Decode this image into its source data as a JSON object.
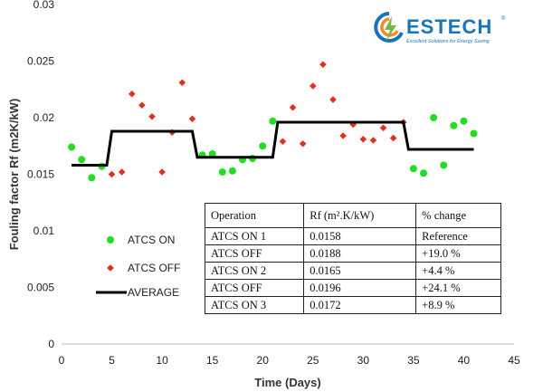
{
  "chart_data": {
    "type": "scatter",
    "xlabel": "Time (Days)",
    "ylabel": "Fouling factor Rf (m2K/kW)",
    "xlim": [
      0,
      45
    ],
    "ylim": [
      0,
      0.03
    ],
    "x_ticks": [
      "0",
      "5",
      "10",
      "15",
      "20",
      "25",
      "30",
      "35",
      "40",
      "45"
    ],
    "y_ticks": [
      "0",
      "0.005",
      "0.01",
      "0.015",
      "0.02",
      "0.025",
      "0.03"
    ],
    "grid": false,
    "legend_position": "left",
    "series": [
      {
        "name": "ATCS ON",
        "marker": "circle",
        "color": "#22dd22",
        "points": [
          [
            1,
            0.0174
          ],
          [
            2,
            0.0163
          ],
          [
            3,
            0.0147
          ],
          [
            4,
            0.0157
          ],
          [
            14,
            0.0167
          ],
          [
            15,
            0.0168
          ],
          [
            16,
            0.0152
          ],
          [
            17,
            0.0153
          ],
          [
            18,
            0.0163
          ],
          [
            19,
            0.0164
          ],
          [
            20,
            0.0175
          ],
          [
            21,
            0.0197
          ],
          [
            35,
            0.0155
          ],
          [
            36,
            0.0151
          ],
          [
            37,
            0.02
          ],
          [
            38,
            0.0158
          ],
          [
            39,
            0.0193
          ],
          [
            40,
            0.0197
          ],
          [
            41,
            0.0186
          ]
        ]
      },
      {
        "name": "ATCS OFF",
        "marker": "diamond",
        "color": "#e0301e",
        "points": [
          [
            5,
            0.015
          ],
          [
            6,
            0.0152
          ],
          [
            7,
            0.0221
          ],
          [
            8,
            0.0211
          ],
          [
            9,
            0.0201
          ],
          [
            10,
            0.0152
          ],
          [
            11,
            0.0187
          ],
          [
            12,
            0.0231
          ],
          [
            13,
            0.0199
          ],
          [
            22,
            0.0179
          ],
          [
            23,
            0.0209
          ],
          [
            24,
            0.0177
          ],
          [
            25,
            0.0228
          ],
          [
            26,
            0.0247
          ],
          [
            27,
            0.0216
          ],
          [
            28,
            0.0184
          ],
          [
            29,
            0.0194
          ],
          [
            30,
            0.0181
          ],
          [
            31,
            0.018
          ],
          [
            32,
            0.0191
          ],
          [
            33,
            0.0182
          ],
          [
            34,
            0.0196
          ]
        ]
      },
      {
        "name": "AVERAGE",
        "marker": "line",
        "color": "#000000",
        "points": [
          [
            1,
            0.0158
          ],
          [
            4.5,
            0.0158
          ],
          [
            5,
            0.0188
          ],
          [
            13,
            0.0188
          ],
          [
            13.5,
            0.0165
          ],
          [
            21,
            0.0165
          ],
          [
            21.5,
            0.0196
          ],
          [
            34,
            0.0196
          ],
          [
            34.5,
            0.0172
          ],
          [
            41,
            0.0172
          ]
        ]
      }
    ]
  },
  "table": {
    "headers": [
      "Operation",
      "Rf (m².K/kW)",
      "% change"
    ],
    "rows": [
      [
        "ATCS ON 1",
        "0.0158",
        "Reference"
      ],
      [
        "ATCS OFF",
        "0.0188",
        "+19.0 %"
      ],
      [
        "ATCS ON 2",
        "0.0165",
        "+4.4 %"
      ],
      [
        "ATCS OFF",
        "0.0196",
        "+24.1 %"
      ],
      [
        "ATCS ON 3",
        "0.0172",
        "+8.9 %"
      ]
    ]
  },
  "logo": {
    "name": "ESTECH",
    "tagline": "Excellent Solutions for Energy Saving",
    "registered": "®",
    "colors": {
      "blue": "#1a73b8",
      "orange": "#f28c28",
      "green": "#7ab648"
    }
  }
}
